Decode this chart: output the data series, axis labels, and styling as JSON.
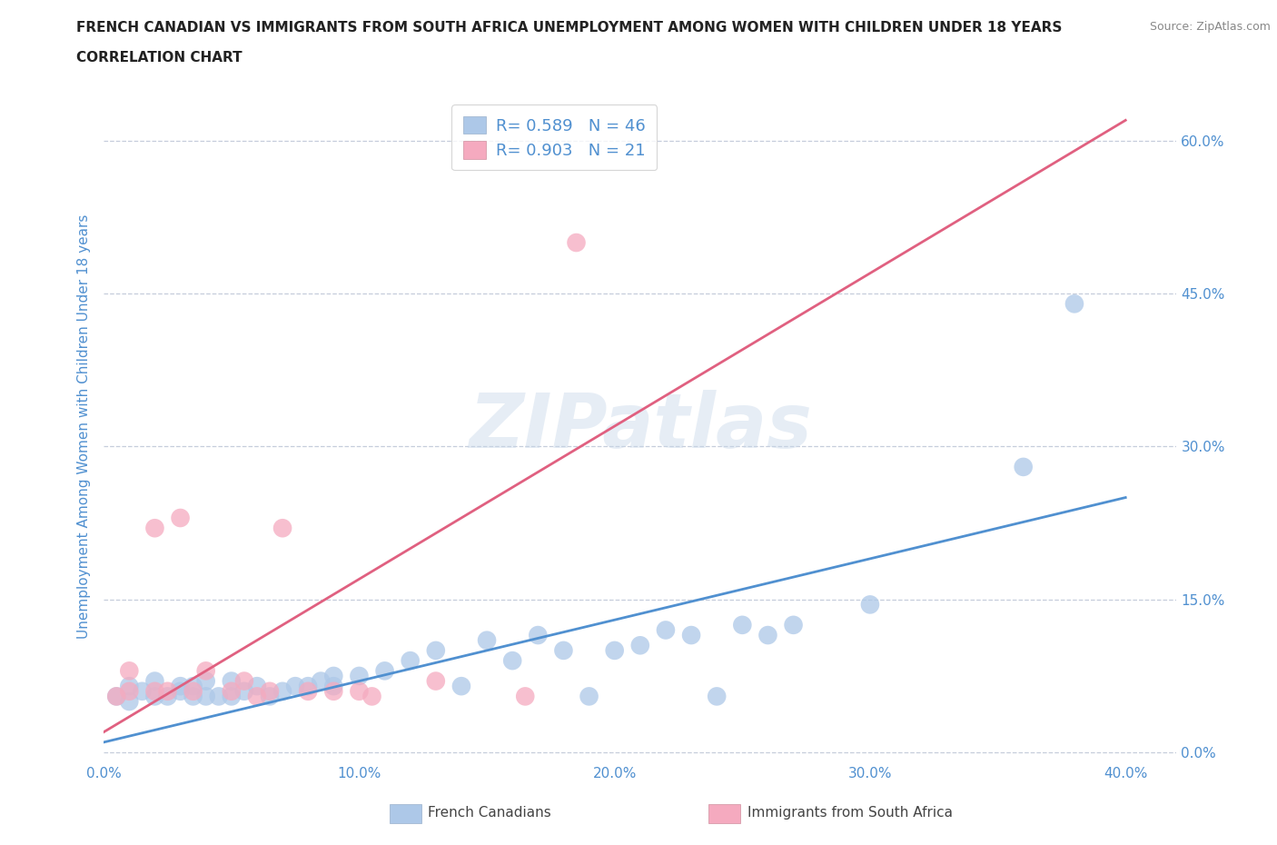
{
  "title_line1": "FRENCH CANADIAN VS IMMIGRANTS FROM SOUTH AFRICA UNEMPLOYMENT AMONG WOMEN WITH CHILDREN UNDER 18 YEARS",
  "title_line2": "CORRELATION CHART",
  "source": "Source: ZipAtlas.com",
  "ylabel": "Unemployment Among Women with Children Under 18 years",
  "xlim": [
    0.0,
    0.42
  ],
  "ylim": [
    -0.01,
    0.65
  ],
  "yticks": [
    0.0,
    0.15,
    0.3,
    0.45,
    0.6
  ],
  "ytick_labels": [
    "0.0%",
    "15.0%",
    "30.0%",
    "45.0%",
    "60.0%"
  ],
  "xticks": [
    0.0,
    0.1,
    0.2,
    0.3,
    0.4
  ],
  "xtick_labels": [
    "0.0%",
    "10.0%",
    "20.0%",
    "30.0%",
    "40.0%"
  ],
  "blue_color": "#adc8e8",
  "pink_color": "#f5aabf",
  "blue_line_color": "#5090d0",
  "pink_line_color": "#e06080",
  "blue_R": "0.589",
  "blue_N": "46",
  "pink_R": "0.903",
  "pink_N": "21",
  "watermark": "ZIPatlas",
  "legend_label_blue": "French Canadians",
  "legend_label_pink": "Immigrants from South Africa",
  "blue_scatter_x": [
    0.005,
    0.01,
    0.01,
    0.015,
    0.02,
    0.02,
    0.025,
    0.03,
    0.03,
    0.035,
    0.035,
    0.04,
    0.04,
    0.045,
    0.05,
    0.05,
    0.055,
    0.06,
    0.065,
    0.07,
    0.075,
    0.08,
    0.085,
    0.09,
    0.09,
    0.1,
    0.11,
    0.12,
    0.13,
    0.14,
    0.15,
    0.16,
    0.17,
    0.18,
    0.19,
    0.2,
    0.21,
    0.22,
    0.23,
    0.24,
    0.25,
    0.26,
    0.27,
    0.3,
    0.36,
    0.38
  ],
  "blue_scatter_y": [
    0.055,
    0.05,
    0.065,
    0.06,
    0.055,
    0.07,
    0.055,
    0.06,
    0.065,
    0.055,
    0.065,
    0.055,
    0.07,
    0.055,
    0.055,
    0.07,
    0.06,
    0.065,
    0.055,
    0.06,
    0.065,
    0.065,
    0.07,
    0.065,
    0.075,
    0.075,
    0.08,
    0.09,
    0.1,
    0.065,
    0.11,
    0.09,
    0.115,
    0.1,
    0.055,
    0.1,
    0.105,
    0.12,
    0.115,
    0.055,
    0.125,
    0.115,
    0.125,
    0.145,
    0.28,
    0.44
  ],
  "pink_scatter_x": [
    0.005,
    0.01,
    0.01,
    0.02,
    0.02,
    0.025,
    0.03,
    0.035,
    0.04,
    0.05,
    0.055,
    0.06,
    0.065,
    0.07,
    0.08,
    0.09,
    0.1,
    0.105,
    0.13,
    0.165,
    0.185
  ],
  "pink_scatter_y": [
    0.055,
    0.06,
    0.08,
    0.06,
    0.22,
    0.06,
    0.23,
    0.06,
    0.08,
    0.06,
    0.07,
    0.055,
    0.06,
    0.22,
    0.06,
    0.06,
    0.06,
    0.055,
    0.07,
    0.055,
    0.5
  ],
  "blue_trend_x": [
    0.0,
    0.4
  ],
  "blue_trend_y": [
    0.01,
    0.25
  ],
  "pink_trend_x": [
    0.0,
    0.4
  ],
  "pink_trend_y": [
    0.02,
    0.62
  ],
  "background_color": "#ffffff",
  "grid_color": "#c0c8d8",
  "title_color": "#222222",
  "axis_label_color": "#5090d0",
  "tick_label_color": "#5090d0",
  "watermark_color": "#c8d8ea",
  "watermark_alpha": 0.45
}
